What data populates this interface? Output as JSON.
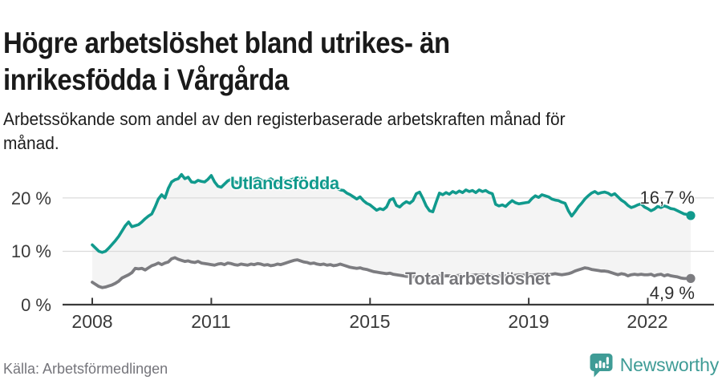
{
  "header": {
    "title": "Högre arbetslöshet bland utrikes- än inrikesfödda i Vårgårda",
    "subtitle": "Arbetssökande som andel av den registerbaserade arbetskraften månad för månad."
  },
  "footer": {
    "source": "Källa: Arbetsförmedlingen",
    "brand": "Newsworthy"
  },
  "colors": {
    "series_utlandsfodda": "#119a8d",
    "series_total": "#7c7c80",
    "fill_between": "#f4f4f4",
    "gridline": "#dbdbdb",
    "axis": "#3a3a3a",
    "logo_teal": "#3f9c96"
  },
  "chart_data": {
    "type": "line",
    "title": "Högre arbetslöshet bland utrikes- än inrikesfödda i Vårgårda",
    "subtitle": "Arbetssökande som andel av den registerbaserade arbetskraften månad för månad.",
    "x_frequency": "monthly",
    "x_start": "2008-01",
    "x_end": "2023-02",
    "x_ticks": [
      "2008",
      "2011",
      "2015",
      "2019",
      "2022"
    ],
    "y_ticks": [
      "0 %",
      "10 %",
      "20 %"
    ],
    "ylim": [
      0,
      27
    ],
    "grid": "horizontal",
    "legend_position": "inline-labels-on-lines",
    "fill_between_series": true,
    "series": [
      {
        "name": "Utlandsfödda",
        "color": "#119a8d",
        "end_label": "16,7 %",
        "end_value": 16.7,
        "values": [
          11.2,
          10.6,
          10.0,
          9.8,
          10.0,
          10.6,
          11.3,
          12.0,
          12.8,
          13.8,
          14.8,
          15.5,
          14.6,
          14.8,
          15.0,
          15.5,
          16.1,
          16.6,
          17.0,
          18.3,
          19.8,
          20.6,
          20.0,
          21.8,
          23.0,
          23.4,
          23.6,
          24.4,
          23.6,
          23.9,
          23.0,
          22.9,
          23.3,
          23.1,
          23.0,
          23.5,
          24.2,
          23.0,
          22.2,
          22.0,
          22.6,
          23.2,
          23.5,
          23.1,
          22.8,
          23.3,
          23.6,
          23.2,
          23.2,
          23.5,
          23.7,
          23.4,
          23.0,
          23.3,
          23.6,
          23.2,
          22.9,
          23.1,
          23.3,
          23.2,
          23.4,
          23.6,
          23.8,
          23.5,
          23.2,
          23.0,
          22.8,
          23.0,
          22.7,
          22.5,
          22.6,
          22.4,
          22.4,
          22.0,
          21.8,
          21.5,
          21.4,
          20.9,
          20.6,
          20.2,
          19.8,
          20.2,
          19.5,
          19.0,
          18.7,
          18.2,
          17.7,
          18.0,
          17.8,
          18.3,
          19.6,
          19.9,
          18.6,
          18.3,
          18.9,
          19.3,
          19.0,
          19.5,
          20.8,
          21.1,
          19.9,
          18.5,
          17.6,
          17.4,
          19.2,
          20.9,
          20.6,
          21.0,
          20.7,
          21.2,
          20.9,
          21.3,
          21.0,
          21.5,
          21.2,
          21.4,
          21.0,
          21.5,
          21.2,
          21.4,
          21.0,
          20.8,
          18.8,
          18.5,
          18.7,
          18.4,
          19.0,
          19.5,
          19.1,
          18.9,
          19.0,
          19.1,
          19.2,
          19.9,
          20.4,
          20.1,
          20.6,
          20.4,
          20.2,
          19.8,
          19.6,
          19.5,
          19.2,
          19.0,
          17.6,
          16.6,
          17.4,
          18.3,
          19.0,
          19.8,
          20.4,
          20.9,
          21.2,
          20.8,
          21.0,
          21.1,
          20.9,
          20.5,
          20.8,
          20.2,
          19.6,
          19.2,
          18.6,
          18.2,
          18.4,
          18.7,
          18.9,
          18.3,
          18.0,
          17.6,
          17.9,
          18.4,
          18.2,
          18.5,
          18.3,
          18.0,
          17.9,
          17.6,
          17.3,
          17.0,
          16.9,
          16.7
        ]
      },
      {
        "name": "Total arbetslöshet",
        "color": "#7c7c80",
        "end_label": "4,9 %",
        "end_value": 4.9,
        "values": [
          4.2,
          3.8,
          3.4,
          3.2,
          3.3,
          3.5,
          3.7,
          4.0,
          4.4,
          5.0,
          5.3,
          5.6,
          6.0,
          6.8,
          6.7,
          6.8,
          6.5,
          6.9,
          7.3,
          7.5,
          7.8,
          7.5,
          7.8,
          8.0,
          8.6,
          8.8,
          8.5,
          8.3,
          8.1,
          8.2,
          8.0,
          7.9,
          8.1,
          7.8,
          7.7,
          7.6,
          7.5,
          7.4,
          7.6,
          7.7,
          7.5,
          7.8,
          7.7,
          7.5,
          7.4,
          7.6,
          7.5,
          7.4,
          7.6,
          7.5,
          7.7,
          7.6,
          7.4,
          7.5,
          7.3,
          7.4,
          7.6,
          7.5,
          7.7,
          7.9,
          8.1,
          8.3,
          8.4,
          8.2,
          8.0,
          7.9,
          7.7,
          7.8,
          7.6,
          7.5,
          7.6,
          7.4,
          7.5,
          7.3,
          7.4,
          7.6,
          7.4,
          7.2,
          7.0,
          6.9,
          6.8,
          6.9,
          6.7,
          6.6,
          6.4,
          6.2,
          6.1,
          6.0,
          5.9,
          5.8,
          5.9,
          5.7,
          5.6,
          5.5,
          5.4,
          5.3,
          5.3,
          5.2,
          5.3,
          5.4,
          5.3,
          5.2,
          5.1,
          5.2,
          5.3,
          5.4,
          5.3,
          5.4,
          5.4,
          5.3,
          5.4,
          5.5,
          5.4,
          5.3,
          5.4,
          5.5,
          5.6,
          5.5,
          5.6,
          5.5,
          5.5,
          5.4,
          5.3,
          5.4,
          5.3,
          5.4,
          5.5,
          5.4,
          5.5,
          5.6,
          5.5,
          5.6,
          5.6,
          5.5,
          5.6,
          5.7,
          5.6,
          5.7,
          5.6,
          5.7,
          5.8,
          5.7,
          5.6,
          5.7,
          5.8,
          6.0,
          6.3,
          6.5,
          6.7,
          6.9,
          6.8,
          6.6,
          6.5,
          6.4,
          6.3,
          6.3,
          6.2,
          6.0,
          5.8,
          5.6,
          5.8,
          5.7,
          5.4,
          5.6,
          5.7,
          5.6,
          5.7,
          5.6,
          5.6,
          5.7,
          5.4,
          5.6,
          5.7,
          5.4,
          5.6,
          5.4,
          5.3,
          5.2,
          5.0,
          4.9,
          4.9,
          4.9
        ]
      }
    ]
  }
}
